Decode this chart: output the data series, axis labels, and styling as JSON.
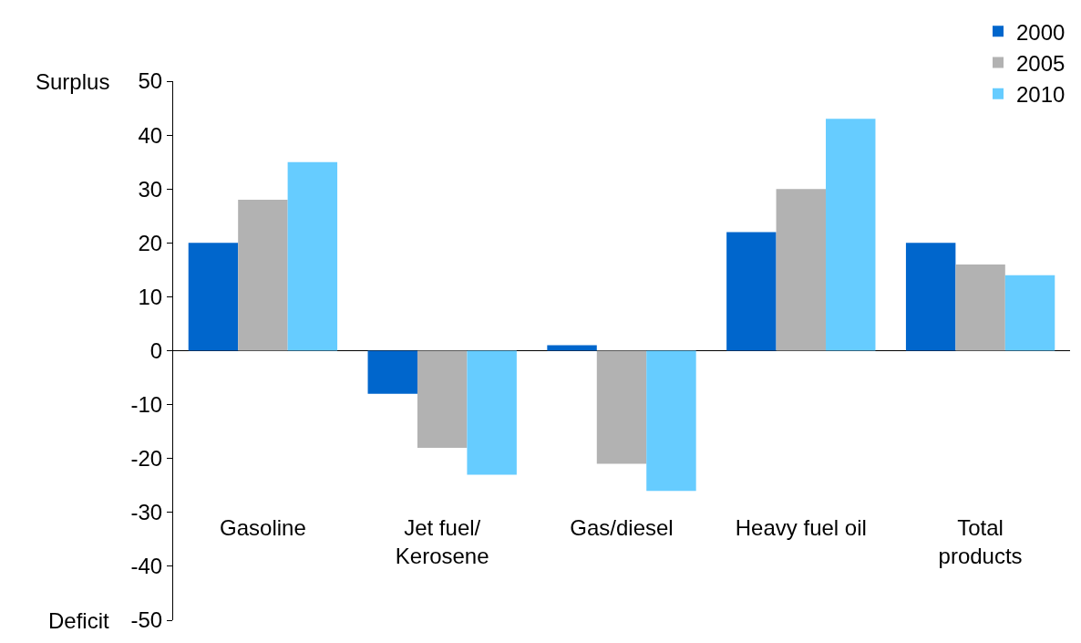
{
  "chart_data": {
    "type": "bar",
    "categories": [
      "Gasoline",
      "Jet fuel/\nKerosene",
      "Gas/diesel",
      "Heavy fuel oil",
      "Total\nproducts"
    ],
    "series": [
      {
        "name": "2000",
        "color": "#0066cc",
        "values": [
          20,
          -8,
          1,
          22,
          20
        ]
      },
      {
        "name": "2005",
        "color": "#b2b2b2",
        "values": [
          28,
          -18,
          -21,
          30,
          16
        ]
      },
      {
        "name": "2010",
        "color": "#66ccff",
        "values": [
          35,
          -23,
          -26,
          43,
          14
        ]
      }
    ],
    "ylim": [
      -50,
      50
    ],
    "yticks": [
      -50,
      -40,
      -30,
      -20,
      -10,
      0,
      10,
      20,
      30,
      40,
      50
    ],
    "annotations": [
      "Surplus",
      "Deficit"
    ],
    "legend": "top right"
  }
}
